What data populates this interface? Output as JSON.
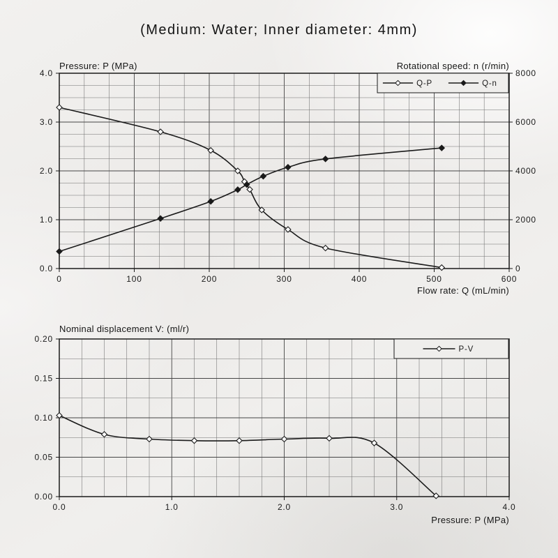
{
  "title": "(Medium: Water; Inner diameter: 4mm)",
  "colors": {
    "line": "#1a1a1a",
    "grid_major": "#454545",
    "grid_minor": "#6e6e6e",
    "frame": "#1a1a1a",
    "legend_bg": "#efeeec"
  },
  "chart_data": [
    {
      "type": "line",
      "ylabel_left": "Pressure: P (MPa)",
      "ylabel_right": "Rotational speed: n (r/min)",
      "xlabel": "Flow rate: Q (mL/min)",
      "xlim": [
        0,
        600
      ],
      "x_tick_labels": [
        "0",
        "100",
        "200",
        "300",
        "400",
        "500",
        "600"
      ],
      "x_minor_divisions": 3,
      "ylim_left": [
        0,
        4
      ],
      "y_left_tick_labels": [
        "0.0",
        "1.0",
        "2.0",
        "3.0",
        "4.0"
      ],
      "y_minor_divisions": 4,
      "ylim_right": [
        0,
        8000
      ],
      "y_right_tick_labels": [
        "0",
        "2000",
        "4000",
        "6000",
        "8000"
      ],
      "grid": true,
      "legend_position": "top-right",
      "series": [
        {
          "name": "Q-P",
          "axis": "left",
          "marker": "open-diamond",
          "points": [
            [
              0,
              3.3
            ],
            [
              135,
              2.8
            ],
            [
              202,
              2.42
            ],
            [
              238,
              2.0
            ],
            [
              247,
              1.78
            ],
            [
              254,
              1.62
            ],
            [
              270,
              1.2
            ],
            [
              305,
              0.8
            ],
            [
              355,
              0.42
            ],
            [
              510,
              0.02
            ]
          ]
        },
        {
          "name": "Q-n",
          "axis": "right",
          "marker": "filled-diamond",
          "points": [
            [
              0,
              700
            ],
            [
              135,
              2050
            ],
            [
              202,
              2750
            ],
            [
              238,
              3230
            ],
            [
              250,
              3440
            ],
            [
              272,
              3780
            ],
            [
              305,
              4150
            ],
            [
              355,
              4490
            ],
            [
              510,
              4940
            ]
          ]
        }
      ]
    },
    {
      "type": "line",
      "ylabel": "Nominal displacement V: (ml/r)",
      "xlabel": "Pressure: P (MPa)",
      "xlim": [
        0,
        4
      ],
      "x_tick_labels": [
        "0.0",
        "1.0",
        "2.0",
        "3.0",
        "4.0"
      ],
      "x_minor_divisions": 5,
      "ylim": [
        0,
        0.2
      ],
      "y_tick_labels": [
        "0.00",
        "0.05",
        "0.10",
        "0.15",
        "0.20"
      ],
      "y_minor_divisions": 2,
      "grid": true,
      "legend_position": "top-right",
      "series": [
        {
          "name": "P-V",
          "axis": "left",
          "marker": "open-diamond",
          "points": [
            [
              0,
              0.103
            ],
            [
              0.4,
              0.079
            ],
            [
              0.8,
              0.073
            ],
            [
              1.2,
              0.071
            ],
            [
              1.6,
              0.071
            ],
            [
              2.0,
              0.073
            ],
            [
              2.4,
              0.074
            ],
            [
              2.8,
              0.068
            ],
            [
              3.35,
              0.001
            ]
          ]
        }
      ]
    }
  ]
}
